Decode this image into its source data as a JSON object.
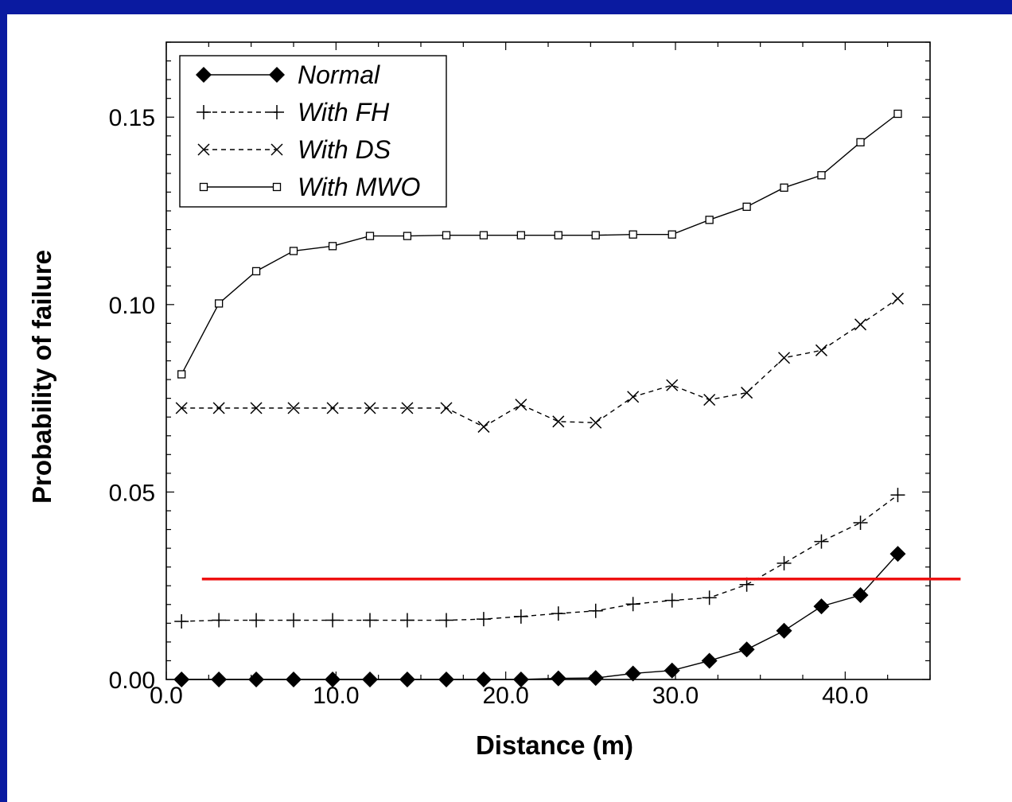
{
  "chart_data": {
    "type": "line",
    "xlabel": "Distance (m)",
    "ylabel": "Probability of failure",
    "xlim": [
      0,
      45
    ],
    "ylim": [
      0,
      0.17
    ],
    "xticks": [
      "0.0",
      "10.0",
      "20.0",
      "30.0",
      "40.0"
    ],
    "xtick_values": [
      0,
      10,
      20,
      30,
      40
    ],
    "yticks": [
      "0.00",
      "0.05",
      "0.10",
      "0.15"
    ],
    "ytick_values": [
      0,
      0.05,
      0.1,
      0.15
    ],
    "x": [
      0.9,
      3.1,
      5.3,
      7.5,
      9.8,
      12.0,
      14.2,
      16.5,
      18.7,
      20.9,
      23.1,
      25.3,
      27.5,
      29.8,
      32.0,
      34.2,
      36.4,
      38.6,
      40.9,
      43.1
    ],
    "legend_position": "top-left",
    "threshold": {
      "y": 0.0268,
      "x_start": 2.1,
      "x_end": 46.8,
      "color": "#ee1111"
    },
    "series": [
      {
        "name": "Normal",
        "marker": "diamond-filled",
        "dash": "solid",
        "values": [
          0.0,
          0.0,
          0.0,
          0.0,
          0.0,
          0.0,
          0.0,
          0.0,
          0.0,
          0.0,
          0.0003,
          0.0004,
          0.0016,
          0.0024,
          0.005,
          0.008,
          0.013,
          0.0195,
          0.0225,
          0.0335
        ]
      },
      {
        "name": "With FH",
        "marker": "plus",
        "dash": "dashed",
        "values": [
          0.0155,
          0.0158,
          0.0158,
          0.0158,
          0.0158,
          0.0158,
          0.0158,
          0.0158,
          0.0161,
          0.0168,
          0.0176,
          0.0183,
          0.0201,
          0.0211,
          0.0218,
          0.0253,
          0.031,
          0.0368,
          0.0418,
          0.0492
        ]
      },
      {
        "name": "With DS",
        "marker": "cross",
        "dash": "dashed",
        "values": [
          0.0724,
          0.0724,
          0.0724,
          0.0724,
          0.0724,
          0.0724,
          0.0724,
          0.0724,
          0.0674,
          0.0733,
          0.0688,
          0.0685,
          0.0754,
          0.0785,
          0.0746,
          0.0765,
          0.0858,
          0.0878,
          0.0947,
          0.1016
        ]
      },
      {
        "name": "With MWO",
        "marker": "square-open",
        "dash": "solid",
        "values": [
          0.0814,
          0.1003,
          0.1089,
          0.1143,
          0.1156,
          0.1183,
          0.1183,
          0.1185,
          0.1185,
          0.1185,
          0.1185,
          0.1185,
          0.1187,
          0.1187,
          0.1226,
          0.1261,
          0.1312,
          0.1345,
          0.1433,
          0.1509
        ]
      }
    ]
  }
}
